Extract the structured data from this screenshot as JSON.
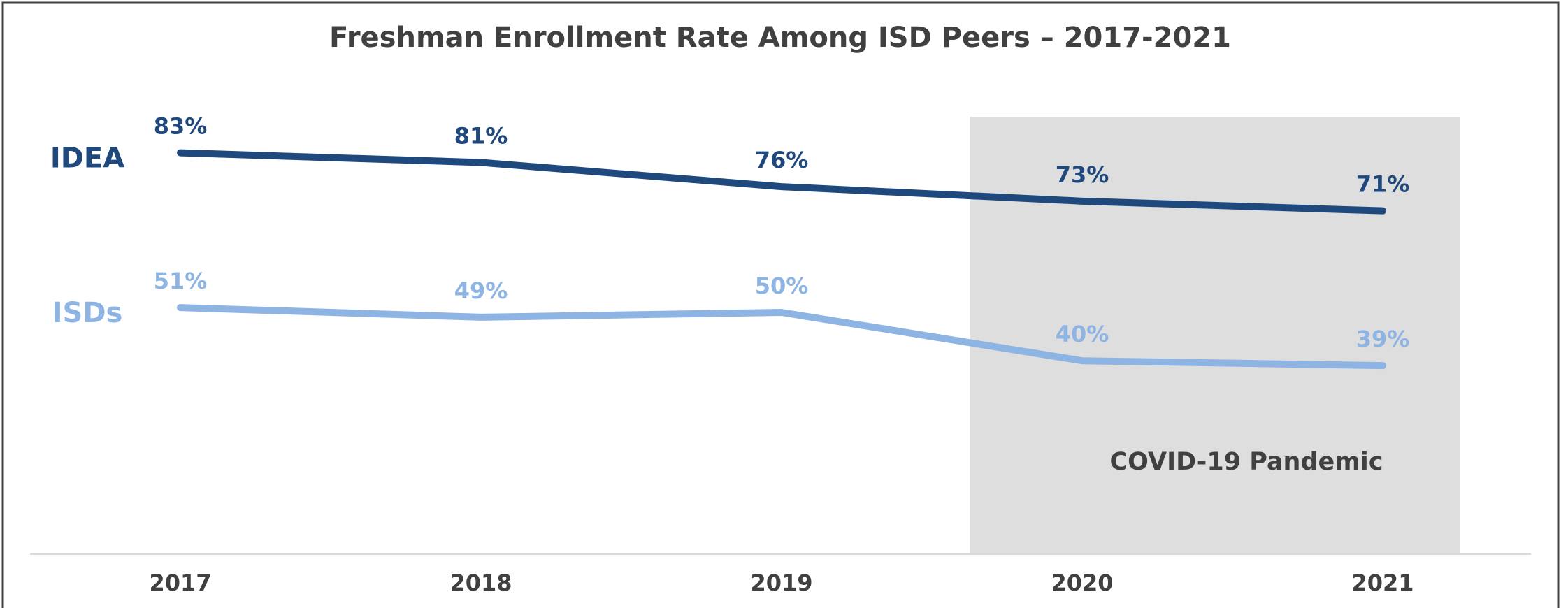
{
  "chart_data": {
    "type": "line",
    "title": "Freshman Enrollment Rate Among ISD Peers – 2017-2021",
    "categories": [
      "2017",
      "2018",
      "2019",
      "2020",
      "2021"
    ],
    "series": [
      {
        "name": "IDEA",
        "color": "#1f497d",
        "values": [
          83,
          81,
          76,
          73,
          71
        ],
        "value_labels": [
          "83%",
          "81%",
          "76%",
          "73%",
          "71%"
        ]
      },
      {
        "name": "ISDs",
        "color": "#8eb4e3",
        "values": [
          51,
          49,
          50,
          40,
          39
        ],
        "value_labels": [
          "51%",
          "49%",
          "50%",
          "40%",
          "39%"
        ]
      }
    ],
    "ylim": [
      0,
      100
    ],
    "annotation": "COVID-19 Pandemic"
  }
}
